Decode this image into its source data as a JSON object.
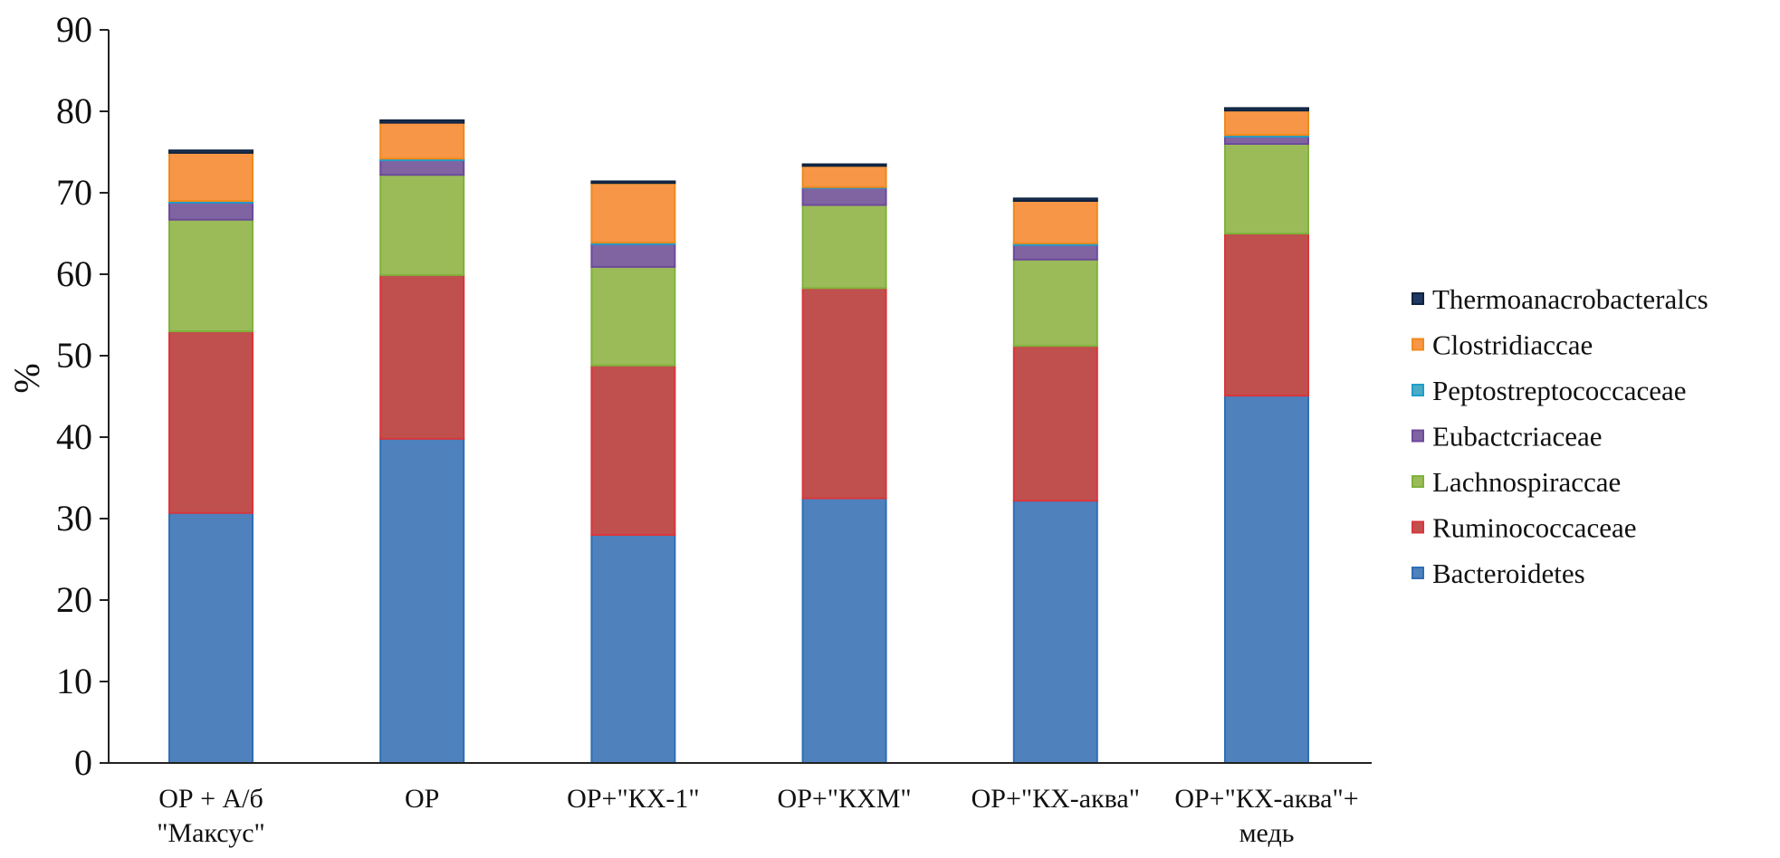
{
  "chart_data": {
    "type": "bar",
    "stacked": true,
    "ylabel": "%",
    "xlabel": "",
    "ylim": [
      0,
      90
    ],
    "yticks": [
      0,
      10,
      20,
      30,
      40,
      50,
      60,
      70,
      80,
      90
    ],
    "grid": false,
    "legend_position": "right",
    "categories": [
      [
        "ОР + А/б",
        "\"Максус\""
      ],
      [
        "ОР"
      ],
      [
        "ОР+\"КХ-1\""
      ],
      [
        "ОР+\"КХМ\""
      ],
      [
        "ОР+\"КХ-аква\""
      ],
      [
        "ОР+\"КХ-аква\"+",
        "медь"
      ]
    ],
    "series": [
      {
        "name": "Bacteroidetes",
        "color": "#4f81bd",
        "edge": "#2f6eb5",
        "values": [
          30.7,
          39.8,
          28.0,
          32.5,
          32.2,
          45.1
        ]
      },
      {
        "name": "Ruminococcaceae",
        "color": "#c0504d",
        "edge": "#d9363b",
        "values": [
          22.3,
          20.1,
          20.8,
          25.8,
          19.0,
          19.9
        ]
      },
      {
        "name": "Lachnospiraccae",
        "color": "#9bbb59",
        "edge": "#7fb23a",
        "values": [
          13.7,
          12.3,
          12.1,
          10.2,
          10.6,
          11.0
        ]
      },
      {
        "name": "Eubactcriaceae",
        "color": "#8064a2",
        "edge": "#6d4a9c",
        "values": [
          2.1,
          1.8,
          2.8,
          2.1,
          1.8,
          0.9
        ]
      },
      {
        "name": "Peptostreptococcaceae",
        "color": "#4bacc6",
        "edge": "#1f9ec9",
        "values": [
          0.2,
          0.2,
          0.2,
          0.1,
          0.2,
          0.2
        ]
      },
      {
        "name": "Clostridiaccae",
        "color": "#f79646",
        "edge": "#f08a1c",
        "values": [
          5.9,
          4.4,
          7.3,
          2.6,
          5.2,
          3.0
        ]
      },
      {
        "name": "Thermoanacrobacteralcs",
        "color": "#1f3864",
        "edge": "#10243f",
        "values": [
          0.3,
          0.3,
          0.2,
          0.2,
          0.3,
          0.3
        ]
      }
    ]
  }
}
